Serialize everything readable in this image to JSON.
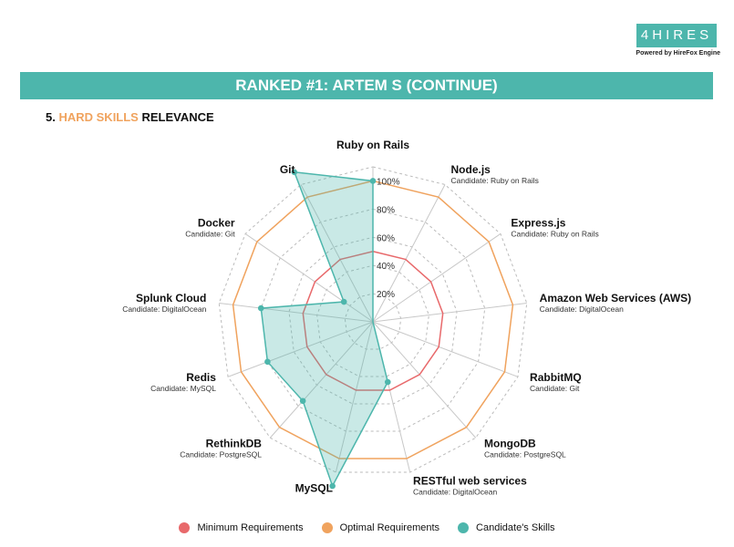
{
  "header": {
    "logo_text": "4HIRES",
    "tagline": "Powered by HireFox Engine",
    "banner": "RANKED #1: ARTEM S (CONTINUE)"
  },
  "section": {
    "number": "5.",
    "highlight": "HARD SKILLS",
    "rest": "RELEVANCE"
  },
  "chart_data": {
    "type": "radar",
    "axis_max": 110,
    "ticks": [
      20,
      40,
      60,
      80,
      100
    ],
    "tick_labels": [
      "20%",
      "40%",
      "60%",
      "80%",
      "100%"
    ],
    "categories": [
      {
        "label": "Ruby on Rails",
        "sub": ""
      },
      {
        "label": "Node.js",
        "sub": "Candidate: Ruby on Rails"
      },
      {
        "label": "Express.js",
        "sub": "Candidate: Ruby on Rails"
      },
      {
        "label": "Amazon Web Services (AWS)",
        "sub": "Candidate: DigitalOcean"
      },
      {
        "label": "RabbitMQ",
        "sub": "Candidate: Git"
      },
      {
        "label": "MongoDB",
        "sub": "Candidate: PostgreSQL"
      },
      {
        "label": "RESTful web services",
        "sub": "Candidate: DigitalOcean"
      },
      {
        "label": "MySQL",
        "sub": ""
      },
      {
        "label": "RethinkDB",
        "sub": "Candidate: PostgreSQL"
      },
      {
        "label": "Redis",
        "sub": "Candidate: MySQL"
      },
      {
        "label": "Splunk Cloud",
        "sub": "Candidate: DigitalOcean"
      },
      {
        "label": "Docker",
        "sub": "Candidate: Git"
      },
      {
        "label": "Git",
        "sub": ""
      }
    ],
    "series": [
      {
        "name": "Minimum Requirements",
        "color": "#e8696b",
        "values": [
          50,
          50,
          50,
          50,
          50,
          50,
          50,
          50,
          50,
          50,
          50,
          50,
          50
        ]
      },
      {
        "name": "Optimal Requirements",
        "color": "#f0a35e",
        "values": [
          100,
          100,
          100,
          100,
          100,
          100,
          100,
          100,
          100,
          100,
          100,
          100,
          100
        ]
      },
      {
        "name": "Candidate's Skills",
        "color": "#4db6ac",
        "values": [
          100,
          0,
          0,
          0,
          0,
          0,
          44,
          120,
          75,
          80,
          80,
          25,
          120
        ]
      }
    ],
    "legend_position": "bottom"
  }
}
